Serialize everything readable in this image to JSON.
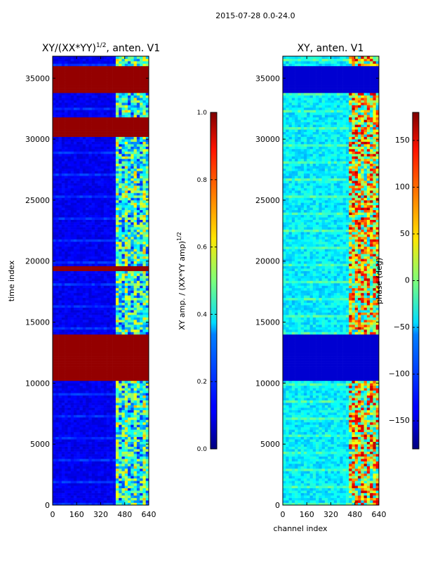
{
  "figure_title": "2015-07-28 0.0-24.0",
  "chart_data": [
    {
      "type": "heatmap",
      "title": "XY/(XX*YY)",
      "title_exponent": "1/2",
      "title_suffix": ", anten. V1",
      "xlabel": "",
      "ylabel": "time index",
      "xlim": [
        0,
        640
      ],
      "ylim": [
        0,
        36800
      ],
      "xticks": [
        "0",
        "160",
        "320",
        "480",
        "640"
      ],
      "yticks": [
        "0",
        "5000",
        "10000",
        "15000",
        "20000",
        "25000",
        "30000",
        "35000"
      ],
      "bands_saturated": [
        [
          10300,
          14000
        ],
        [
          19200,
          19600
        ],
        [
          30300,
          31700
        ],
        [
          33900,
          35900
        ]
      ],
      "colorbar": {
        "label": "XY amp. / (XX*YY amp)",
        "label_exponent": "1/2",
        "range": [
          0.0,
          1.0
        ],
        "ticks": [
          "0.0",
          "0.2",
          "0.4",
          "0.6",
          "0.8",
          "1.0"
        ],
        "colormap": "jet"
      }
    },
    {
      "type": "heatmap",
      "title": "XY, anten. V1",
      "xlabel": "channel index",
      "ylabel": "",
      "xlim": [
        0,
        640
      ],
      "ylim": [
        0,
        36800
      ],
      "xticks": [
        "0",
        "160",
        "320",
        "480",
        "640"
      ],
      "yticks": [
        "0",
        "5000",
        "10000",
        "15000",
        "20000",
        "25000",
        "30000",
        "35000"
      ],
      "bands_flat": [
        [
          10300,
          14000
        ],
        [
          33900,
          35900
        ]
      ],
      "colorbar": {
        "label": "phase (deg)",
        "range": [
          -180,
          180
        ],
        "ticks": [
          "−150",
          "−100",
          "−50",
          "0",
          "50",
          "100",
          "150"
        ],
        "colormap": "jet"
      }
    }
  ]
}
